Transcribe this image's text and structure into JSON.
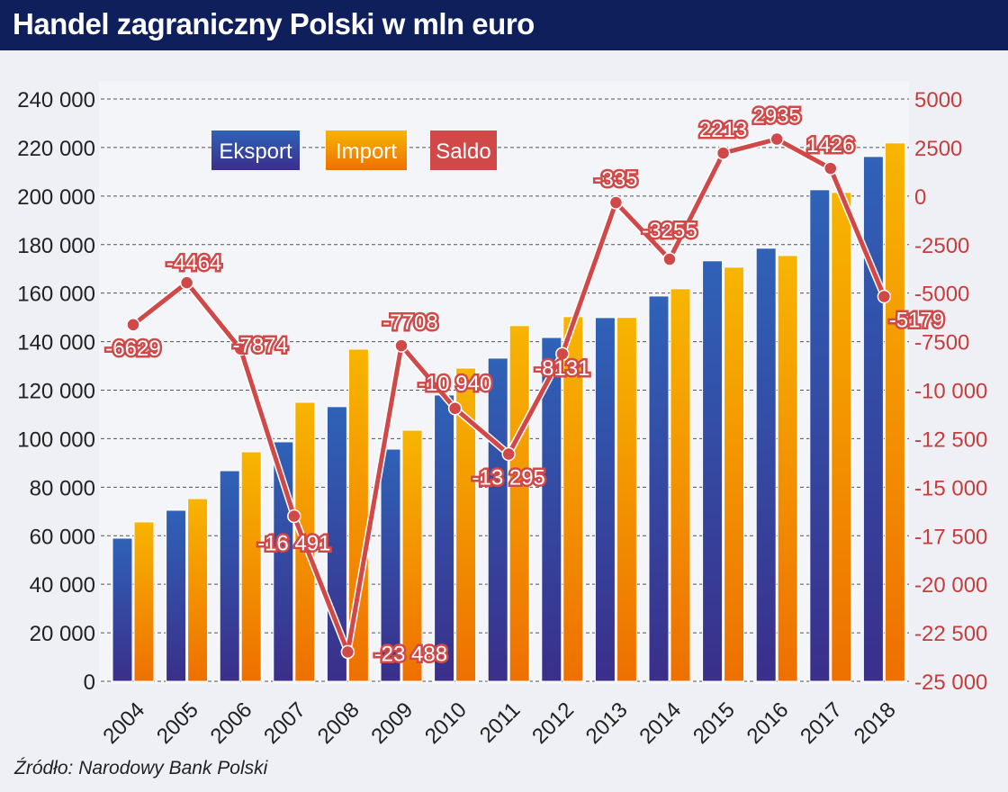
{
  "title": "Handel zagraniczny Polski w mln euro",
  "source": "Źródło: Narodowy Bank Polski",
  "colors": {
    "eksport": "#2f5db0",
    "import": "#f5a300",
    "saldo": "#d04848",
    "title_bg": "#0f1f5c"
  },
  "chart_data": {
    "type": "bar+line",
    "categories": [
      "2004",
      "2005",
      "2006",
      "2007",
      "2008",
      "2009",
      "2010",
      "2011",
      "2012",
      "2013",
      "2014",
      "2015",
      "2016",
      "2017",
      "2018"
    ],
    "series": [
      {
        "name": "Eksport",
        "axis": "left",
        "type": "bar",
        "values": [
          59000,
          70500,
          86800,
          98700,
          113200,
          95700,
          118000,
          133200,
          141700,
          149900,
          158800,
          173300,
          178500,
          202600,
          216300
        ]
      },
      {
        "name": "Import",
        "axis": "left",
        "type": "bar",
        "values": [
          65700,
          75300,
          94600,
          115000,
          136900,
          103500,
          129100,
          146600,
          150300,
          150000,
          161800,
          170700,
          175500,
          201500,
          221900
        ]
      },
      {
        "name": "Saldo",
        "axis": "right",
        "type": "line",
        "values": [
          -6629,
          -4464,
          -7874,
          -16491,
          -23488,
          -7708,
          -10940,
          -13295,
          -8131,
          -335,
          -3255,
          2213,
          2935,
          1426,
          -5179
        ],
        "labels": [
          "-6629",
          "-4464",
          "-7874",
          "-16 491",
          "-23 488",
          "-7708",
          "-10 940",
          "-13 295",
          "-8131",
          "-335",
          "-3255",
          "2213",
          "2935",
          "1426",
          "-5179"
        ]
      }
    ],
    "y_left": {
      "range": [
        0,
        240000
      ],
      "ticks": [
        "0",
        "20 000",
        "40 000",
        "60 000",
        "80 000",
        "100 000",
        "120 000",
        "140 000",
        "160 000",
        "180 000",
        "200 000",
        "220 000",
        "240 000"
      ]
    },
    "y_right": {
      "range": [
        -25000,
        5000
      ],
      "ticks": [
        "-25 000",
        "-22 500",
        "-20 000",
        "-17 500",
        "-15 000",
        "-12 500",
        "-10 000",
        "-7500",
        "-5000",
        "-2500",
        "0",
        "2500",
        "5000"
      ]
    },
    "grid": true,
    "legend": {
      "placement": "top-left",
      "entries": [
        "Eksport",
        "Import",
        "Saldo"
      ]
    }
  }
}
